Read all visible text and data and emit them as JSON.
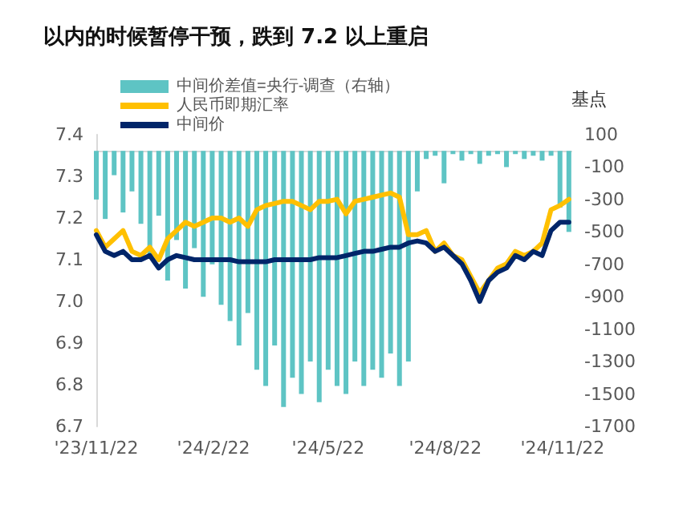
{
  "chart_data": {
    "type": "line",
    "title": "以内的时候暂停干预，跌到 7.2 以上重启",
    "y2label": "基点",
    "x": [
      "2023-11-22",
      "2023-11-29",
      "2023-12-06",
      "2023-12-13",
      "2023-12-20",
      "2023-12-27",
      "2024-01-03",
      "2024-01-10",
      "2024-01-17",
      "2024-01-24",
      "2024-01-31",
      "2024-02-07",
      "2024-02-14",
      "2024-02-21",
      "2024-02-28",
      "2024-03-06",
      "2024-03-13",
      "2024-03-20",
      "2024-03-27",
      "2024-04-03",
      "2024-04-10",
      "2024-04-17",
      "2024-04-24",
      "2024-05-01",
      "2024-05-08",
      "2024-05-15",
      "2024-05-22",
      "2024-05-29",
      "2024-06-05",
      "2024-06-12",
      "2024-06-19",
      "2024-06-26",
      "2024-07-03",
      "2024-07-10",
      "2024-07-17",
      "2024-07-24",
      "2024-07-31",
      "2024-08-07",
      "2024-08-14",
      "2024-08-21",
      "2024-08-28",
      "2024-09-04",
      "2024-09-11",
      "2024-09-18",
      "2024-09-25",
      "2024-10-02",
      "2024-10-09",
      "2024-10-16",
      "2024-10-23",
      "2024-10-30",
      "2024-11-06",
      "2024-11-13",
      "2024-11-20",
      "2024-11-27"
    ],
    "series": [
      {
        "name": "中间价差值=央行-调查（右轴）",
        "type": "bar",
        "axis": "y2",
        "color": "#5ec4c4",
        "values": [
          -300,
          -420,
          -150,
          -380,
          -250,
          -450,
          -650,
          -400,
          -800,
          -550,
          -850,
          -600,
          -900,
          -700,
          -950,
          -1050,
          -1200,
          -1000,
          -1350,
          -1450,
          -1200,
          -1580,
          -1400,
          -1500,
          -1300,
          -1550,
          -1350,
          -1450,
          -1500,
          -1300,
          -1450,
          -1350,
          -1400,
          -1250,
          -1450,
          -1300,
          -250,
          -50,
          -30,
          -200,
          -20,
          -60,
          -20,
          -80,
          -30,
          -20,
          -100,
          -20,
          -50,
          -30,
          -60,
          -30,
          -350,
          -500
        ]
      },
      {
        "name": "人民币即期汇率",
        "type": "line",
        "color": "#ffc000",
        "values": [
          7.17,
          7.13,
          7.15,
          7.17,
          7.12,
          7.11,
          7.13,
          7.1,
          7.15,
          7.17,
          7.19,
          7.18,
          7.19,
          7.2,
          7.2,
          7.19,
          7.2,
          7.18,
          7.22,
          7.23,
          7.235,
          7.24,
          7.24,
          7.23,
          7.22,
          7.24,
          7.24,
          7.245,
          7.21,
          7.24,
          7.245,
          7.25,
          7.255,
          7.26,
          7.25,
          7.16,
          7.16,
          7.17,
          7.12,
          7.14,
          7.11,
          7.1,
          7.06,
          7.02,
          7.05,
          7.08,
          7.09,
          7.12,
          7.11,
          7.12,
          7.14,
          7.22,
          7.23,
          7.245
        ]
      },
      {
        "name": "中间价",
        "color": "#002569",
        "values": [
          7.16,
          7.12,
          7.11,
          7.12,
          7.1,
          7.1,
          7.11,
          7.08,
          7.1,
          7.11,
          7.105,
          7.1,
          7.1,
          7.1,
          7.1,
          7.1,
          7.095,
          7.095,
          7.095,
          7.095,
          7.1,
          7.1,
          7.1,
          7.1,
          7.1,
          7.105,
          7.105,
          7.105,
          7.11,
          7.115,
          7.12,
          7.12,
          7.125,
          7.13,
          7.13,
          7.14,
          7.145,
          7.14,
          7.12,
          7.13,
          7.11,
          7.09,
          7.05,
          7.0,
          7.05,
          7.07,
          7.08,
          7.11,
          7.1,
          7.12,
          7.11,
          7.17,
          7.19,
          7.19
        ]
      }
    ],
    "xlim": [
      "2023-11-22",
      "2024-11-29"
    ],
    "xticks": [
      {
        "value": "2023-11-22",
        "label": "'23/11/22"
      },
      {
        "value": "2024-02-22",
        "label": "'24/2/22"
      },
      {
        "value": "2024-05-22",
        "label": "'24/5/22"
      },
      {
        "value": "2024-08-22",
        "label": "'24/8/22"
      },
      {
        "value": "2024-11-22",
        "label": "'24/11/22"
      }
    ],
    "ylim": [
      6.7,
      7.4
    ],
    "yticks": [
      6.7,
      6.8,
      6.9,
      {
        "value": 7,
        "label": "7.0"
      },
      7.1,
      7.2,
      7.3,
      7.4
    ],
    "y2lim": [
      -1700,
      100
    ],
    "y2ticks": [
      -1700,
      -1500,
      -1300,
      -1100,
      -900,
      -700,
      -500,
      -300,
      -100,
      100
    ],
    "legend": "top left",
    "grid": false,
    "marker": "none",
    "line_style": "solid"
  }
}
